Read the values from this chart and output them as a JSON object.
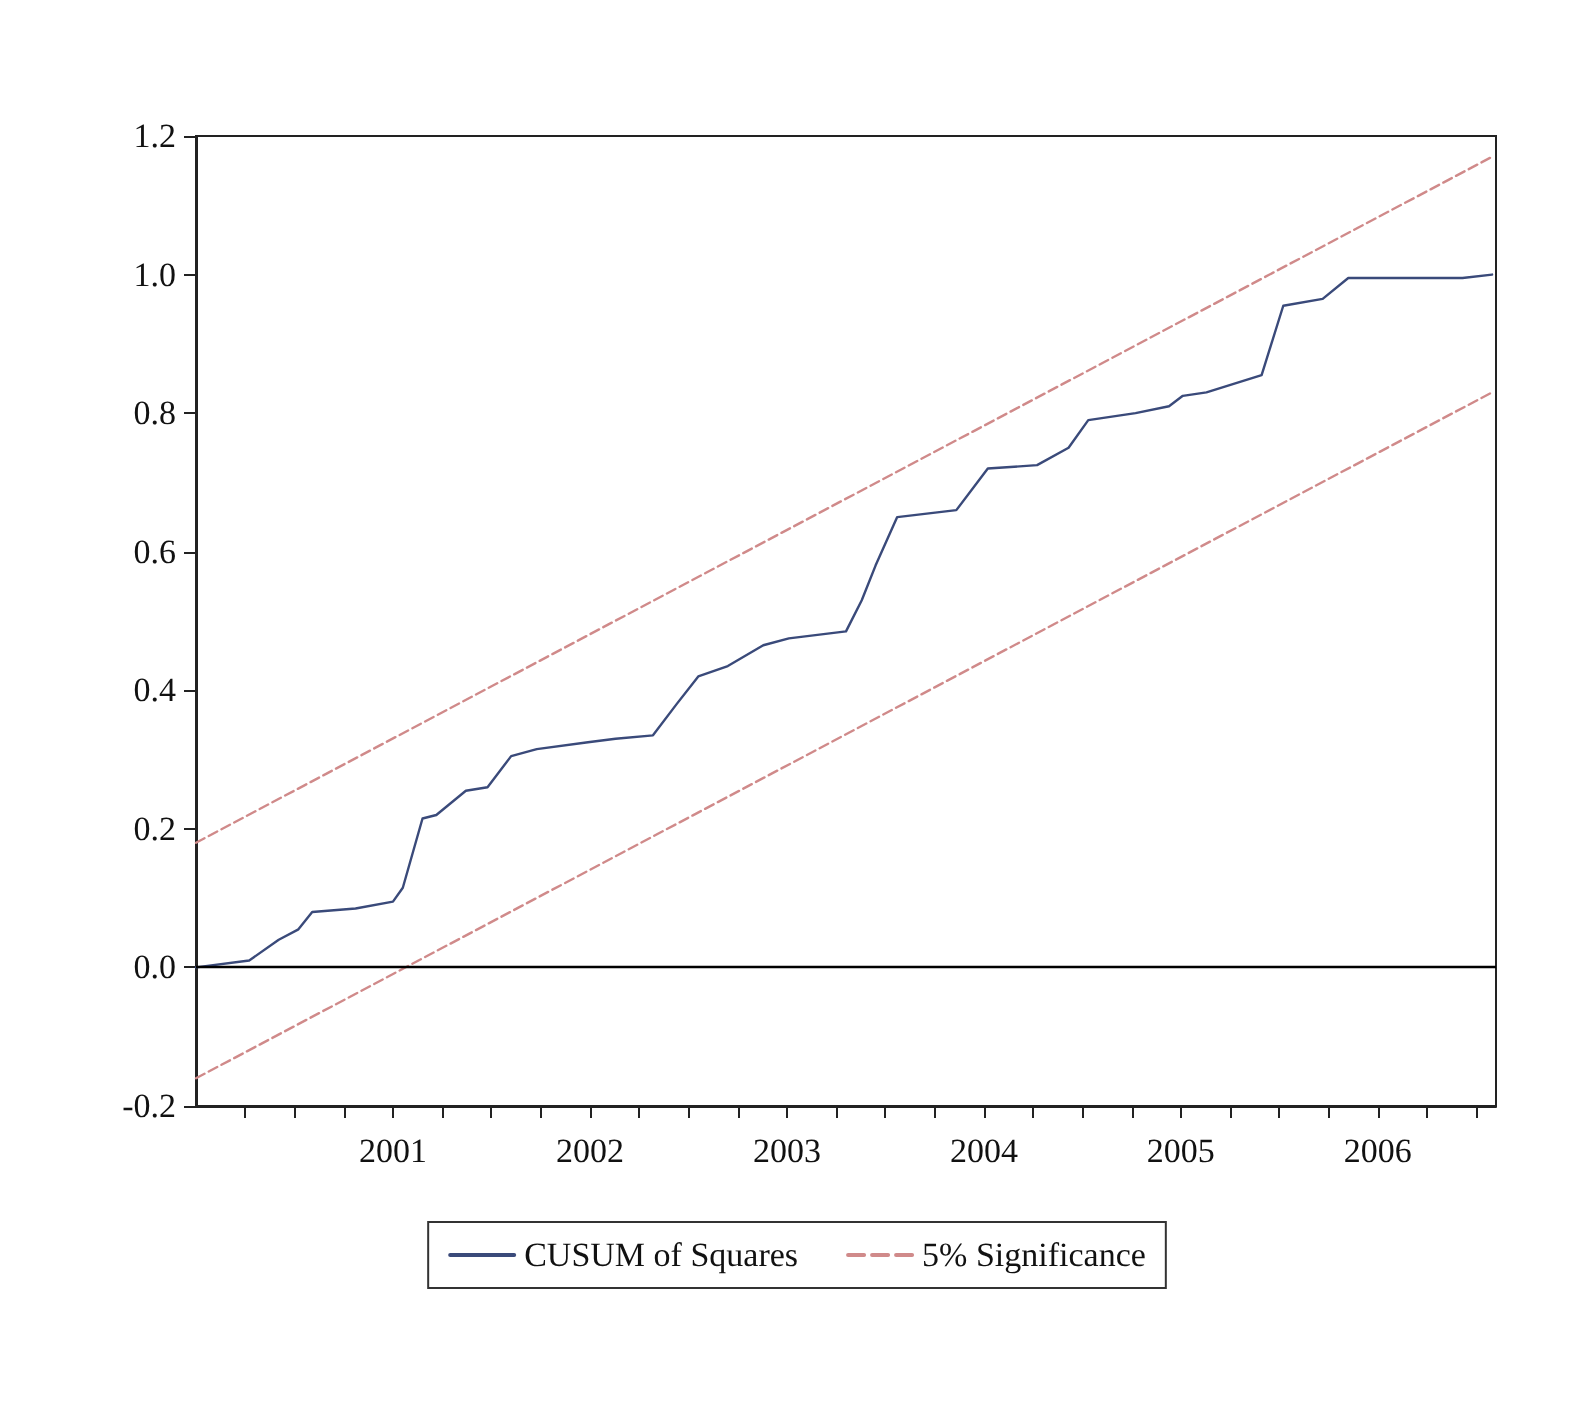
{
  "chart_data": {
    "type": "line",
    "x": [
      2000.5,
      2000.77,
      2000.92,
      2001.02,
      2001.09,
      2001.31,
      2001.5,
      2001.55,
      2001.65,
      2001.72,
      2001.87,
      2001.98,
      2002.1,
      2002.23,
      2002.49,
      2002.63,
      2002.82,
      2002.94,
      2003.05,
      2003.2,
      2003.38,
      2003.51,
      2003.8,
      2003.88,
      2003.95,
      2004.06,
      2004.36,
      2004.52,
      2004.77,
      2004.93,
      2005.03,
      2005.27,
      2005.44,
      2005.51,
      2005.63,
      2005.91,
      2006.02,
      2006.22,
      2006.35,
      2006.93,
      2007.08
    ],
    "series": [
      {
        "name": "CUSUM of Squares",
        "color": "#3a4a7a",
        "line_style": "solid",
        "values": [
          0,
          0.01,
          0.04,
          0.055,
          0.08,
          0.085,
          0.095,
          0.115,
          0.215,
          0.22,
          0.255,
          0.26,
          0.305,
          0.315,
          0.325,
          0.33,
          0.335,
          0.38,
          0.42,
          0.435,
          0.465,
          0.475,
          0.485,
          0.53,
          0.58,
          0.65,
          0.66,
          0.72,
          0.725,
          0.75,
          0.79,
          0.8,
          0.81,
          0.825,
          0.83,
          0.855,
          0.955,
          0.965,
          0.995,
          0.995,
          1.0
        ]
      },
      {
        "name": "5% Significance",
        "color": "#d08a8a",
        "line_style": "dashed",
        "values": [
          0.18,
          null,
          null,
          null,
          null,
          null,
          null,
          null,
          null,
          null,
          null,
          null,
          null,
          null,
          null,
          null,
          null,
          null,
          null,
          null,
          null,
          null,
          null,
          null,
          null,
          null,
          null,
          null,
          null,
          null,
          null,
          null,
          null,
          null,
          null,
          null,
          null,
          null,
          null,
          null,
          1.17
        ]
      },
      {
        "color": "#d08a8a",
        "line_style": "dashed",
        "values": [
          -0.16,
          null,
          null,
          null,
          null,
          null,
          null,
          null,
          null,
          null,
          null,
          null,
          null,
          null,
          null,
          null,
          null,
          null,
          null,
          null,
          null,
          null,
          null,
          null,
          null,
          null,
          null,
          null,
          null,
          null,
          null,
          null,
          null,
          null,
          null,
          null,
          null,
          null,
          null,
          null,
          0.83
        ]
      }
    ],
    "xlim": [
      2000.5,
      2007.1
    ],
    "xticks": [
      {
        "value": 2000.75,
        "label": null
      },
      {
        "value": 2001,
        "label": null
      },
      {
        "value": 2001.25,
        "label": null
      },
      {
        "value": 2001.5,
        "label": "2001"
      },
      {
        "value": 2001.75,
        "label": null
      },
      {
        "value": 2002,
        "label": null
      },
      {
        "value": 2002.25,
        "label": null
      },
      {
        "value": 2002.5,
        "label": "2002"
      },
      {
        "value": 2002.75,
        "label": null
      },
      {
        "value": 2003,
        "label": null
      },
      {
        "value": 2003.25,
        "label": null
      },
      {
        "value": 2003.5,
        "label": "2003"
      },
      {
        "value": 2003.75,
        "label": null
      },
      {
        "value": 2004,
        "label": null
      },
      {
        "value": 2004.25,
        "label": null
      },
      {
        "value": 2004.5,
        "label": "2004"
      },
      {
        "value": 2004.75,
        "label": null
      },
      {
        "value": 2005,
        "label": null
      },
      {
        "value": 2005.25,
        "label": null
      },
      {
        "value": 2005.5,
        "label": "2005"
      },
      {
        "value": 2005.75,
        "label": null
      },
      {
        "value": 2006,
        "label": null
      },
      {
        "value": 2006.25,
        "label": null
      },
      {
        "value": 2006.5,
        "label": "2006"
      },
      {
        "value": 2006.75,
        "label": null
      },
      {
        "value": 2007,
        "label": null
      }
    ],
    "ylim": [
      -0.2,
      1.2
    ],
    "yticks": [
      {
        "value": -0.2,
        "label": "-0.2"
      },
      {
        "value": 0,
        "label": "0.0"
      },
      {
        "value": 0.2,
        "label": "0.2"
      },
      {
        "value": 0.4,
        "label": "0.4"
      },
      {
        "value": 0.6,
        "label": "0.6"
      },
      {
        "value": 0.8,
        "label": "0.8"
      },
      {
        "value": 1.0,
        "label": "1.0"
      },
      {
        "value": 1.2,
        "label": "1.2"
      }
    ],
    "ref_lines": [
      {
        "axis": "y",
        "value": 0,
        "color": "#000000",
        "line_style": "solid"
      }
    ],
    "grid": false,
    "legend": "bottom",
    "marker": "none"
  }
}
